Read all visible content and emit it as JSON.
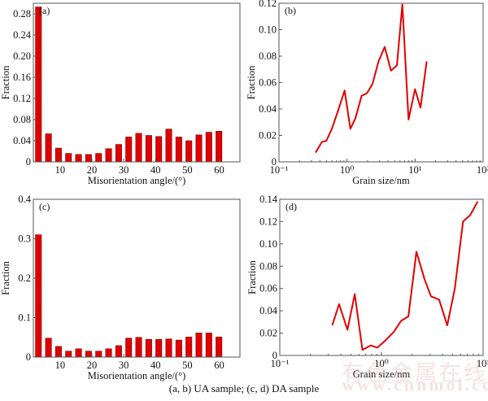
{
  "chart_data": [
    {
      "panel": "(a)",
      "type": "bar",
      "xlabel": "Misorientation angle/(°)",
      "ylabel": "Fraction",
      "xlim": [
        1.6,
        66.5
      ],
      "ylim": [
        0,
        0.3
      ],
      "xticks": [
        10,
        20,
        30,
        40,
        50,
        60
      ],
      "xtick_labels": [
        "10",
        "20",
        "30",
        "40",
        "50",
        "60"
      ],
      "yticks": [
        0,
        0.04,
        0.08,
        0.12,
        0.16,
        0.2,
        0.24,
        0.28
      ],
      "ytick_labels": [
        "0",
        "0.04",
        "0.08",
        "0.12",
        "0.16",
        "0.20",
        "0.24",
        "0.28"
      ],
      "x": [
        3.2,
        6.35,
        9.5,
        12.65,
        15.8,
        18.95,
        22.1,
        25.25,
        28.4,
        31.55,
        34.7,
        37.85,
        41.0,
        44.15,
        47.3,
        50.45,
        53.6,
        56.75,
        59.9
      ],
      "values": [
        0.293,
        0.053,
        0.026,
        0.016,
        0.014,
        0.014,
        0.016,
        0.025,
        0.033,
        0.047,
        0.054,
        0.05,
        0.048,
        0.062,
        0.047,
        0.04,
        0.051,
        0.056,
        0.058
      ],
      "color": "#e00000"
    },
    {
      "panel": "(b)",
      "type": "line",
      "xscale": "log",
      "xlabel": "Grain size/nm",
      "ylabel": "Fraction",
      "xlim": [
        0.1,
        100
      ],
      "ylim": [
        0,
        0.12
      ],
      "xticks": [
        0.1,
        1,
        10,
        100
      ],
      "xtick_labels": [
        "10⁻¹",
        "10⁰",
        "10¹",
        "10²"
      ],
      "yticks": [
        0,
        0.02,
        0.04,
        0.06,
        0.08,
        0.1,
        0.12
      ],
      "ytick_labels": [
        "0",
        "0.02",
        "0.04",
        "0.06",
        "0.08",
        "0.10",
        "0.12"
      ],
      "x": [
        0.345,
        0.426,
        0.498,
        0.598,
        0.719,
        0.921,
        1.12,
        1.33,
        1.64,
        1.97,
        2.37,
        2.9,
        3.58,
        4.42,
        5.41,
        6.5,
        8.02,
        9.99,
        12.0,
        14.8
      ],
      "values": [
        0.007,
        0.015,
        0.016,
        0.025,
        0.037,
        0.054,
        0.025,
        0.033,
        0.05,
        0.052,
        0.059,
        0.076,
        0.087,
        0.069,
        0.073,
        0.119,
        0.032,
        0.055,
        0.041,
        0.076
      ],
      "color": "#e00000"
    },
    {
      "panel": "(c)",
      "type": "bar",
      "xlabel": "Misorientation angle/(°)",
      "ylabel": "Fraction",
      "xlim": [
        1.6,
        66.5
      ],
      "ylim": [
        0,
        0.4
      ],
      "xticks": [
        10,
        20,
        30,
        40,
        50,
        60
      ],
      "xtick_labels": [
        "10",
        "20",
        "30",
        "40",
        "50",
        "60"
      ],
      "yticks": [
        0,
        0.1,
        0.2,
        0.3,
        0.4
      ],
      "ytick_labels": [
        "0",
        "0.1",
        "0.2",
        "0.3",
        "0.4"
      ],
      "x": [
        3.2,
        6.35,
        9.5,
        12.65,
        15.8,
        18.95,
        22.1,
        25.25,
        28.4,
        31.55,
        34.7,
        37.85,
        41.0,
        44.15,
        47.3,
        50.45,
        53.6,
        56.75,
        59.9
      ],
      "values": [
        0.31,
        0.048,
        0.027,
        0.015,
        0.021,
        0.015,
        0.015,
        0.021,
        0.029,
        0.048,
        0.05,
        0.045,
        0.045,
        0.046,
        0.043,
        0.051,
        0.061,
        0.061,
        0.051
      ],
      "color": "#e00000"
    },
    {
      "panel": "(d)",
      "type": "line",
      "xscale": "log",
      "xlabel": "Grain size/nm",
      "ylabel": "Fraction",
      "xlim": [
        0.1,
        10
      ],
      "ylim": [
        0,
        0.14
      ],
      "xticks": [
        0.1,
        1,
        10
      ],
      "xtick_labels": [
        "10⁻¹",
        "10⁰",
        "10¹"
      ],
      "yticks": [
        0,
        0.02,
        0.04,
        0.06,
        0.08,
        0.1,
        0.12,
        0.14
      ],
      "ytick_labels": [
        "0",
        "0.02",
        "0.04",
        "0.06",
        "0.08",
        "0.10",
        "0.12",
        "0.14"
      ],
      "x": [
        0.328,
        0.383,
        0.463,
        0.547,
        0.65,
        0.782,
        0.912,
        1.08,
        1.32,
        1.56,
        1.84,
        2.21,
        2.66,
        3.07,
        3.69,
        4.44,
        5.27,
        6.34,
        7.49,
        8.84
      ],
      "values": [
        0.027,
        0.046,
        0.023,
        0.055,
        0.005,
        0.009,
        0.007,
        0.013,
        0.021,
        0.031,
        0.035,
        0.093,
        0.068,
        0.053,
        0.05,
        0.027,
        0.06,
        0.12,
        0.126,
        0.138
      ],
      "color": "#e00000"
    }
  ],
  "caption": "(a, b) UA sample; (c, d) DA sample",
  "watermark": {
    "line1": "有色金属在线",
    "line2": "www.cnnmol.com"
  }
}
